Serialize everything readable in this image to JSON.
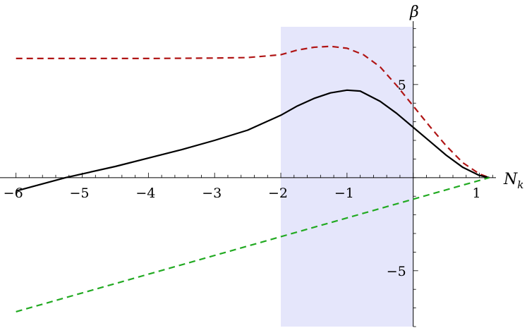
{
  "chart_data": {
    "type": "line",
    "title": "",
    "xlabel": "N_k",
    "ylabel": "β",
    "xlim": [
      -6.05,
      1.25
    ],
    "ylim": [
      -8,
      8.1
    ],
    "grid": false,
    "legend": "none",
    "x_ticks": [
      -6,
      -5,
      -4,
      -3,
      -2,
      -1,
      1
    ],
    "y_ticks": [
      -5,
      5
    ],
    "shaded_band": {
      "x": [
        -2,
        0
      ],
      "color": "#e5e6fb"
    },
    "series": [
      {
        "style": "dashed",
        "color": "#b01515",
        "points": [
          [
            -6.0,
            6.4
          ],
          [
            -5.0,
            6.4
          ],
          [
            -4.0,
            6.4
          ],
          [
            -3.0,
            6.42
          ],
          [
            -2.5,
            6.45
          ],
          [
            -2.0,
            6.6
          ],
          [
            -1.75,
            6.85
          ],
          [
            -1.5,
            7.0
          ],
          [
            -1.25,
            7.05
          ],
          [
            -1.0,
            6.95
          ],
          [
            -0.75,
            6.6
          ],
          [
            -0.5,
            5.95
          ],
          [
            -0.25,
            4.95
          ],
          [
            0.0,
            3.85
          ],
          [
            0.25,
            2.75
          ],
          [
            0.5,
            1.7
          ],
          [
            0.75,
            0.8
          ],
          [
            1.0,
            0.2
          ],
          [
            1.15,
            0.0
          ]
        ]
      },
      {
        "style": "solid",
        "color": "#000000",
        "points": [
          [
            -6.0,
            -0.72
          ],
          [
            -5.25,
            0.0
          ],
          [
            -4.5,
            0.6
          ],
          [
            -4.0,
            1.05
          ],
          [
            -3.5,
            1.5
          ],
          [
            -3.0,
            2.0
          ],
          [
            -2.5,
            2.55
          ],
          [
            -2.0,
            3.35
          ],
          [
            -1.75,
            3.85
          ],
          [
            -1.5,
            4.25
          ],
          [
            -1.25,
            4.55
          ],
          [
            -1.0,
            4.7
          ],
          [
            -0.8,
            4.65
          ],
          [
            -0.5,
            4.1
          ],
          [
            -0.25,
            3.45
          ],
          [
            0.0,
            2.7
          ],
          [
            0.25,
            1.95
          ],
          [
            0.5,
            1.2
          ],
          [
            0.75,
            0.55
          ],
          [
            1.0,
            0.12
          ],
          [
            1.15,
            0.0
          ]
        ]
      },
      {
        "style": "dashed",
        "color": "#22aa22",
        "points": [
          [
            -6.0,
            -7.2
          ],
          [
            1.15,
            0.0
          ]
        ]
      }
    ]
  }
}
